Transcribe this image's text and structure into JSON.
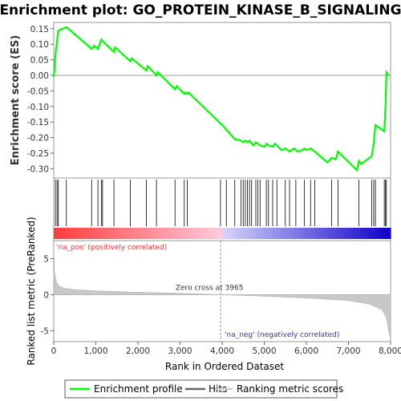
{
  "chart_data": {
    "type": "line",
    "title": "Enrichment plot: GO_PROTEIN_KINASE_B_SIGNALING",
    "es_panel": {
      "ylabel": "Enrichment score (ES)",
      "ylim": [
        -0.33,
        0.17
      ],
      "yticks": [
        0.15,
        0.1,
        0.05,
        0.0,
        -0.05,
        -0.1,
        -0.15,
        -0.2,
        -0.25,
        -0.3
      ],
      "ytick_labels": [
        "0.15",
        "0.10",
        "0.05",
        "0.00",
        "-0.05",
        "-0.10",
        "-0.15",
        "-0.20",
        "-0.25",
        "-0.30"
      ],
      "series": {
        "name": "Enrichment profile",
        "color": "#00ff00",
        "x": [
          0,
          25,
          45,
          60,
          80,
          100,
          120,
          300,
          900,
          960,
          1050,
          1130,
          1160,
          1430,
          1460,
          1820,
          1850,
          2200,
          2230,
          2440,
          2470,
          2880,
          2920,
          3100,
          3130,
          3170,
          3200,
          3960,
          4000,
          4300,
          4450,
          4500,
          4550,
          4600,
          4650,
          4700,
          4750,
          4800,
          4850,
          4900,
          5000,
          5050,
          5100,
          5200,
          5250,
          5300,
          5400,
          5500,
          5600,
          5700,
          5800,
          5900,
          5950,
          6000,
          6100,
          6200,
          6500,
          6600,
          6700,
          6750,
          7200,
          7250,
          7300,
          7550,
          7600,
          7640,
          7850,
          7880,
          7900,
          7950
        ],
        "y": [
          -0.005,
          0.03,
          0.075,
          0.09,
          0.11,
          0.14,
          0.145,
          0.155,
          0.085,
          0.095,
          0.085,
          0.115,
          0.11,
          0.075,
          0.09,
          0.045,
          0.055,
          0.015,
          0.03,
          0.0,
          0.01,
          -0.045,
          -0.035,
          -0.06,
          -0.055,
          -0.06,
          -0.055,
          -0.155,
          -0.16,
          -0.205,
          -0.21,
          -0.215,
          -0.21,
          -0.215,
          -0.21,
          -0.22,
          -0.225,
          -0.215,
          -0.22,
          -0.225,
          -0.23,
          -0.22,
          -0.225,
          -0.23,
          -0.22,
          -0.225,
          -0.24,
          -0.235,
          -0.245,
          -0.235,
          -0.245,
          -0.24,
          -0.235,
          -0.24,
          -0.235,
          -0.245,
          -0.28,
          -0.265,
          -0.27,
          -0.245,
          -0.305,
          -0.275,
          -0.285,
          -0.26,
          -0.22,
          -0.16,
          -0.18,
          -0.1,
          0.01,
          0.0
        ]
      }
    },
    "hits_panel": {
      "name": "Hits",
      "hit_ranks": [
        40,
        80,
        110,
        300,
        900,
        1050,
        1130,
        1160,
        1430,
        1820,
        2200,
        2440,
        2880,
        3100,
        3170,
        3960,
        4100,
        4300,
        4450,
        4500,
        4550,
        4600,
        4650,
        4700,
        4800,
        4850,
        4900,
        5050,
        5100,
        5200,
        5300,
        5500,
        5600,
        5750,
        5950,
        6100,
        6200,
        6600,
        6750,
        7250,
        7550,
        7600,
        7640,
        7850,
        7880,
        7900
      ]
    },
    "ranked_panel": {
      "ylabel": "Ranked list metric (PreRanked)",
      "xlabel": "Rank in Ordered Dataset",
      "xlim": [
        0,
        8000
      ],
      "ylim": [
        -6.5,
        7.5
      ],
      "yticks": [
        5,
        0,
        -5
      ],
      "ytick_labels": [
        "5",
        "0",
        "-5"
      ],
      "xticks": [
        0,
        1000,
        2000,
        3000,
        4000,
        5000,
        6000,
        7000,
        8000
      ],
      "xtick_labels": [
        "0",
        "1,000",
        "2,000",
        "3,000",
        "4,000",
        "5,000",
        "6,000",
        "7,000",
        "8,000"
      ],
      "metric_profile": {
        "name": "Ranking metric scores",
        "x": [
          0,
          20,
          60,
          120,
          250,
          500,
          1000,
          2000,
          3000,
          3965,
          5000,
          6000,
          7000,
          7500,
          7800,
          7900,
          7950,
          8000
        ],
        "y": [
          6.8,
          3.2,
          1.8,
          1.2,
          0.9,
          0.7,
          0.55,
          0.35,
          0.2,
          0.0,
          -0.2,
          -0.45,
          -0.8,
          -1.3,
          -2.1,
          -3.2,
          -4.8,
          -6.2
        ]
      },
      "zero_cross": 3965,
      "zero_cross_label": "Zero cross at 3965",
      "pos_label": "'na_pos' (positively correlated)",
      "neg_label": "'na_neg' (negatively correlated)",
      "pos_color": "#ff3333",
      "neg_color": "#3333cc"
    },
    "legend": {
      "placement": "bottom",
      "items": [
        {
          "label": "Enrichment profile",
          "color": "#00ff00"
        },
        {
          "label": "Hits",
          "color": "#666666"
        },
        {
          "label": "Ranking metric scores",
          "color": "#cccccc"
        }
      ]
    }
  }
}
